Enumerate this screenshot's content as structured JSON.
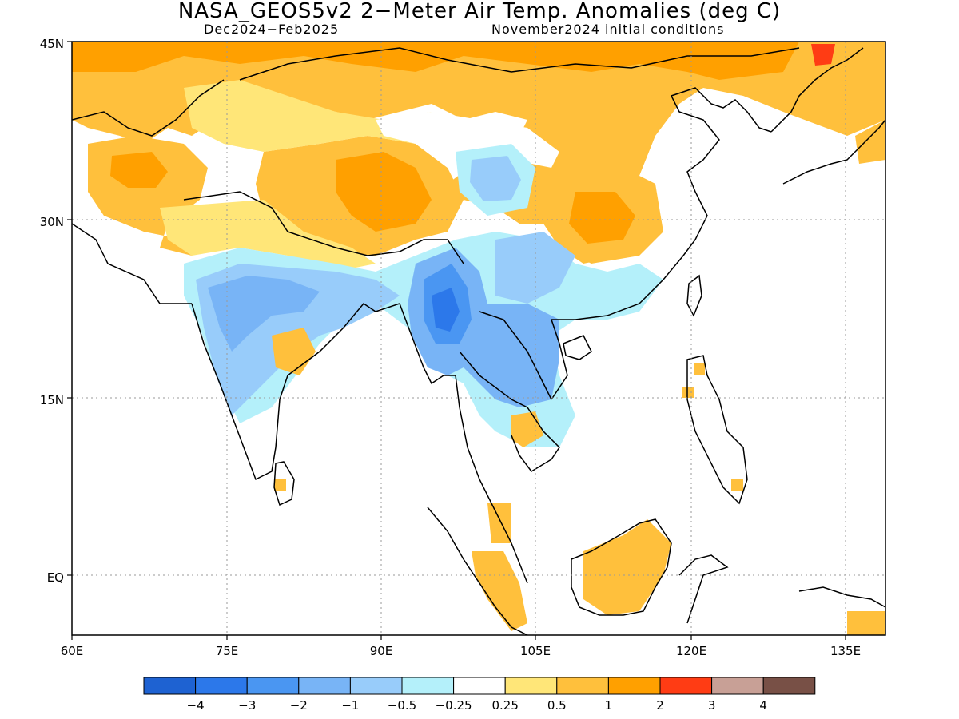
{
  "title": "NASA_GEOS5v2 2−Meter Air Temp. Anomalies (deg C)",
  "subtitle_left": "Dec2024−Feb2025",
  "subtitle_right": "November2024 initial conditions",
  "lat_labels": [
    "45N",
    "30N",
    "15N",
    "EQ"
  ],
  "lon_labels": [
    "60E",
    "75E",
    "90E",
    "105E",
    "120E",
    "135E"
  ],
  "colorbar": {
    "colors": [
      "#1e62d2",
      "#2c78ea",
      "#4a96f2",
      "#78b4f6",
      "#98ccfa",
      "#b4f0fa",
      "#ffffff",
      "#ffe678",
      "#ffc03c",
      "#ffa000",
      "#ff3c14",
      "#c8a096",
      "#785046"
    ],
    "labels": [
      "−4",
      "−3",
      "−2",
      "−1",
      "−0.5",
      "−0.25",
      "0.25",
      "0.5",
      "1",
      "2",
      "3",
      "4"
    ]
  },
  "map": {
    "regions": [
      {
        "name": "north-china-mongolia-warm",
        "category": "1"
      },
      {
        "name": "tibet-plateau-warm",
        "category": "1"
      },
      {
        "name": "south-china-warm",
        "category": "1"
      },
      {
        "name": "afghanistan-warm",
        "category": "1"
      },
      {
        "name": "northeast-china-hotspot",
        "category": "2"
      },
      {
        "name": "india-cool",
        "category": "−1"
      },
      {
        "name": "myanmar-cool",
        "category": "−2"
      },
      {
        "name": "indochina-cool",
        "category": "−1"
      },
      {
        "name": "qinghai-cool",
        "category": "−1"
      },
      {
        "name": "borneo-warm",
        "category": "1"
      },
      {
        "name": "sumatra-malaya-warm",
        "category": "1"
      }
    ]
  }
}
